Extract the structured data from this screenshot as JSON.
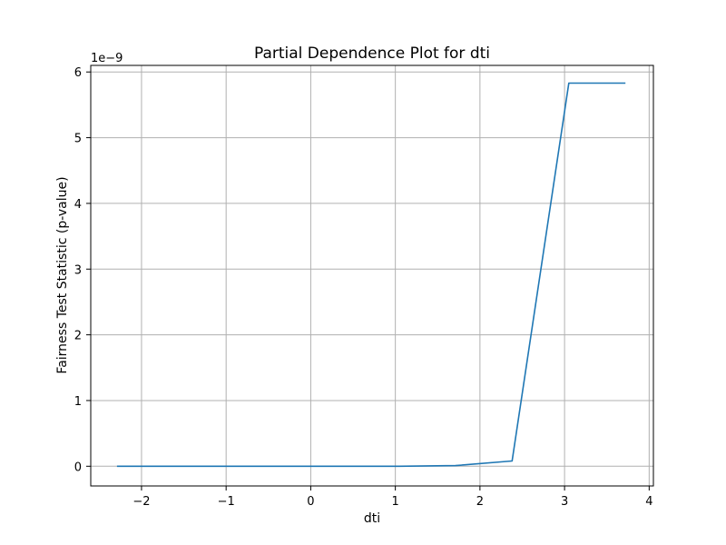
{
  "chart_data": {
    "type": "line",
    "title": "Partial Dependence Plot for dti",
    "xlabel": "dti",
    "ylabel": "Fairness Test Statistic (p-value)",
    "y_offset_label": "1e−9",
    "xlim": [
      -2.6,
      4.05
    ],
    "ylim": [
      -0.3,
      6.1
    ],
    "x_ticks": [
      -2,
      -1,
      0,
      1,
      2,
      3,
      4
    ],
    "x_tick_labels": [
      "−2",
      "−1",
      "0",
      "1",
      "2",
      "3",
      "4"
    ],
    "y_ticks": [
      0,
      1,
      2,
      3,
      4,
      5,
      6
    ],
    "y_tick_labels": [
      "0",
      "1",
      "2",
      "3",
      "4",
      "5",
      "6"
    ],
    "grid": true,
    "series": [
      {
        "color": "#1f77b4",
        "x": [
          -2.29,
          -1.62,
          -0.95,
          -0.29,
          0.38,
          1.05,
          1.71,
          2.38,
          3.05,
          3.72
        ],
        "y": [
          0.0,
          0.0,
          0.0,
          0.0,
          0.0,
          0.0,
          0.01,
          0.08,
          5.83,
          5.83
        ]
      }
    ]
  }
}
